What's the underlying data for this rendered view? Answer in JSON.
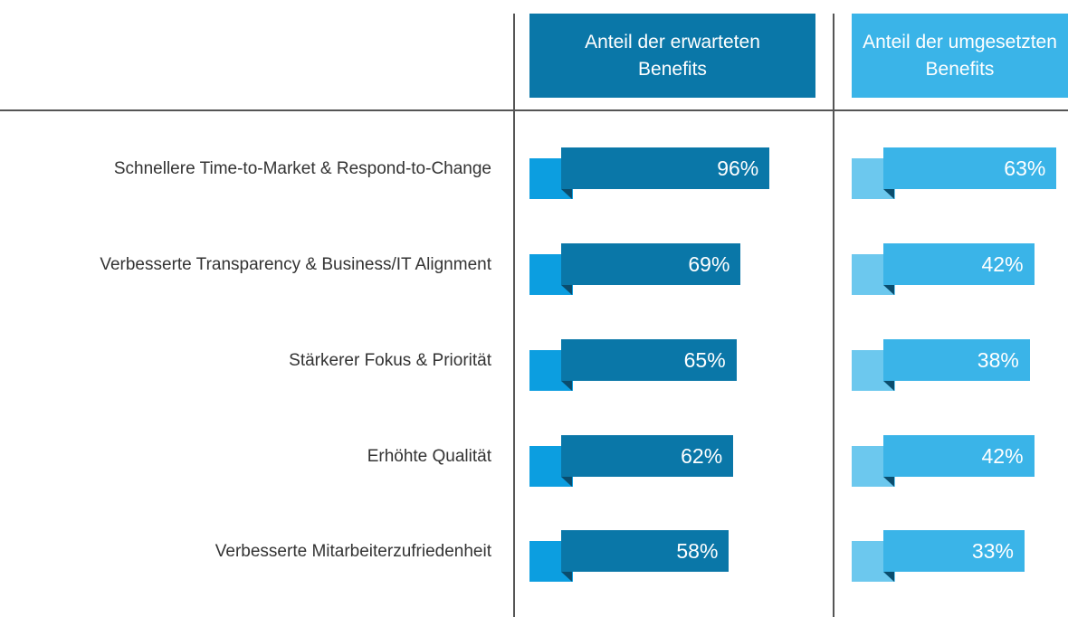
{
  "chart_data": {
    "type": "bar",
    "categories": [
      "Schnellere Time-to-Market & Respond-to-Change",
      "Verbesserte Transparency & Business/IT Alignment",
      "Stärkerer Fokus & Priorität",
      "Erhöhte Qualität",
      "Verbesserte Mitarbeiterzufriedenheit"
    ],
    "series": [
      {
        "name": "Anteil der erwarteten\nBenefits",
        "values": [
          96,
          69,
          65,
          62,
          58
        ],
        "labels": [
          "96%",
          "69%",
          "65%",
          "62%",
          "58%"
        ],
        "color": "#0a77a8",
        "tab_color": "#0c9ee0"
      },
      {
        "name": "Anteil der umgesetzten\nBenefits",
        "values": [
          63,
          42,
          38,
          42,
          33
        ],
        "labels": [
          "63%",
          "42%",
          "38%",
          "42%",
          "33%"
        ],
        "color": "#3ab4e8",
        "tab_color": "#6cc8ee"
      }
    ],
    "unit": "%"
  }
}
